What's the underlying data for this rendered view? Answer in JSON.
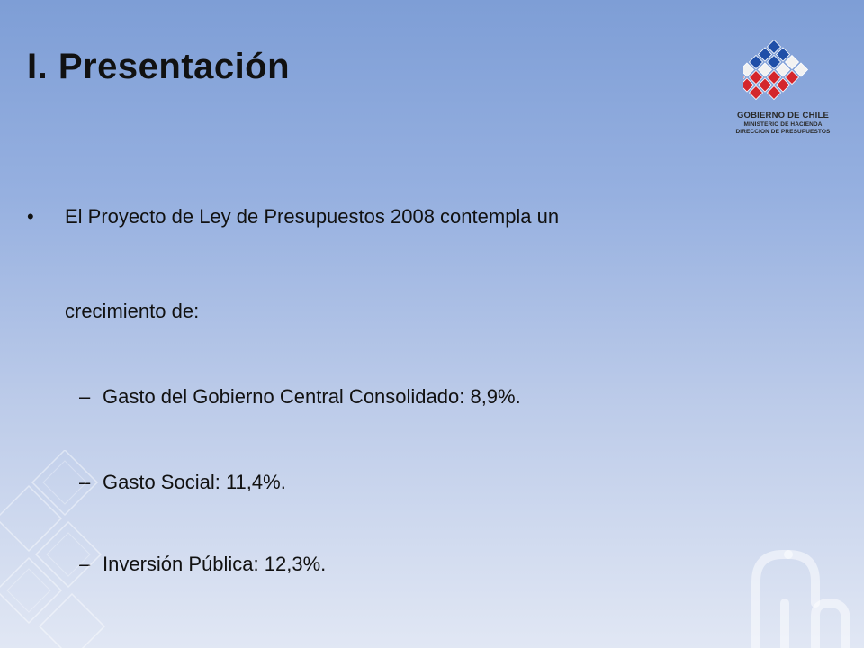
{
  "slide": {
    "title": "I. Presentación",
    "logo": {
      "name": "GOBIERNO DE CHILE",
      "line2": "MINISTERIO DE HACIENDA",
      "line3": "DIRECCION DE PRESUPUESTOS"
    },
    "bullet": {
      "marker": "•",
      "text_line1": "El Proyecto de Ley de Presupuestos 2008 contempla un",
      "text_line2": "crecimiento de:",
      "sub_marker": "–",
      "sub_items": [
        "Gasto del Gobierno Central Consolidado: 8,9%.",
        "Gasto Social: 11,4%.",
        "Inversión Pública: 12,3%."
      ]
    },
    "colors": {
      "background_top": "#7e9ed6",
      "background_bottom": "#e1e7f4",
      "logo_blue": "#1f4fa8",
      "logo_red": "#d4262c",
      "logo_white": "#f2f2f2"
    }
  }
}
